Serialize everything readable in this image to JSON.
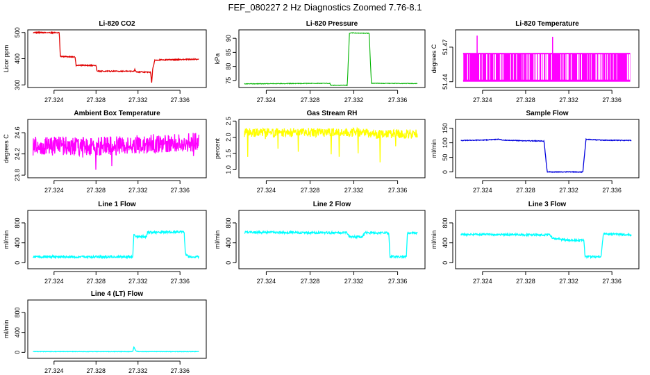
{
  "figure": {
    "title": "FEF_080227  2 Hz Diagnostics Zoomed 7.76-8.1"
  },
  "chart_data": [
    {
      "type": "line",
      "title": "Li-820 CO2",
      "ylabel": "Licor ppm",
      "color": "#e00000",
      "xlim": [
        27.3215,
        27.3385
      ],
      "ylim": [
        290,
        510
      ],
      "xticks": [
        27.324,
        27.328,
        27.332,
        27.336
      ],
      "yticks": [
        300,
        400,
        500
      ],
      "ytick_labels": [
        "300",
        "400",
        "500"
      ],
      "series": [
        {
          "x": [
            27.322,
            27.3245,
            27.3246,
            27.326,
            27.3261,
            27.328,
            27.3281,
            27.3316,
            27.3317,
            27.3318,
            27.3332,
            27.3333,
            27.3334,
            27.3336,
            27.3378
          ],
          "y": [
            500,
            499,
            408,
            407,
            375,
            374,
            352,
            352,
            360,
            350,
            348,
            308,
            360,
            395,
            398
          ]
        }
      ]
    },
    {
      "type": "line",
      "title": "Li-820 Pressure",
      "ylabel": "kPa",
      "color": "#00b400",
      "xlim": [
        27.3215,
        27.3385
      ],
      "ylim": [
        72.5,
        93
      ],
      "xticks": [
        27.324,
        27.328,
        27.332,
        27.336
      ],
      "yticks": [
        75,
        80,
        85,
        90
      ],
      "ytick_labels": [
        "75",
        "80",
        "85",
        "90"
      ],
      "series": [
        {
          "x": [
            27.322,
            27.3298,
            27.3299,
            27.3314,
            27.3316,
            27.3318,
            27.3334,
            27.3336,
            27.3378
          ],
          "y": [
            73.8,
            74.0,
            73.3,
            73.3,
            91.8,
            91.9,
            91.8,
            74.0,
            73.9
          ]
        }
      ]
    },
    {
      "type": "area",
      "title": "Li-820 Temperature",
      "ylabel": "degrees C",
      "color": "#ff00ff",
      "xlim": [
        27.3215,
        27.3385
      ],
      "ylim": [
        51.435,
        51.485
      ],
      "xticks": [
        27.324,
        27.328,
        27.332,
        27.336
      ],
      "yticks": [
        51.44,
        51.47
      ],
      "ytick_labels": [
        "51.44",
        "51.47"
      ],
      "levels": [
        51.44,
        51.465
      ],
      "spikes": [
        {
          "x": 27.3235,
          "y": 51.48
        },
        {
          "x": 27.3305,
          "y": 51.479
        }
      ]
    },
    {
      "type": "line",
      "title": "Ambient Box Temperature",
      "ylabel": "degrees C",
      "color": "#ff00ff",
      "xlim": [
        27.3215,
        27.3385
      ],
      "ylim": [
        23.75,
        24.85
      ],
      "xticks": [
        27.324,
        27.328,
        27.332,
        27.336
      ],
      "yticks": [
        23.8,
        24.2,
        24.6
      ],
      "ytick_labels": [
        "23.8",
        "24.2",
        "24.6"
      ],
      "series": [
        {
          "x": [
            27.322,
            27.326,
            27.33,
            27.332,
            27.334,
            27.336,
            27.3378
          ],
          "y": [
            24.35,
            24.35,
            24.35,
            24.38,
            24.4,
            24.42,
            24.42
          ]
        }
      ]
    },
    {
      "type": "line",
      "title": "Gas Stream RH",
      "ylabel": "percent",
      "color": "#ffff00",
      "xlim": [
        27.3215,
        27.3385
      ],
      "ylim": [
        0.75,
        2.55
      ],
      "xticks": [
        27.324,
        27.328,
        27.332,
        27.336
      ],
      "yticks": [
        1.0,
        1.5,
        2.0,
        2.5
      ],
      "ytick_labels": [
        "1.0",
        "1.5",
        "2.0",
        "2.5"
      ],
      "series": [
        {
          "x": [
            27.322,
            27.328,
            27.332,
            27.334,
            27.3378
          ],
          "y": [
            2.15,
            2.15,
            2.15,
            2.1,
            2.1
          ]
        }
      ]
    },
    {
      "type": "line",
      "title": "Sample Flow",
      "ylabel": "ml/min",
      "color": "#0000dd",
      "xlim": [
        27.3215,
        27.3385
      ],
      "ylim": [
        -20,
        180
      ],
      "xticks": [
        27.324,
        27.328,
        27.332,
        27.336
      ],
      "yticks": [
        0,
        50,
        100,
        150
      ],
      "ytick_labels": [
        "0",
        "50",
        "100",
        "150"
      ],
      "series": [
        {
          "x": [
            27.322,
            27.324,
            27.3255,
            27.326,
            27.3278,
            27.3297,
            27.33,
            27.3333,
            27.3336,
            27.335,
            27.3378
          ],
          "y": [
            108,
            109,
            112,
            109,
            107,
            106,
            0,
            0,
            112,
            109,
            108
          ]
        }
      ]
    },
    {
      "type": "line",
      "title": "Line 1 Flow",
      "ylabel": "ml/min",
      "color": "#00ffff",
      "xlim": [
        27.3215,
        27.3385
      ],
      "ylim": [
        -120,
        1050
      ],
      "xticks": [
        27.324,
        27.328,
        27.332,
        27.336
      ],
      "yticks": [
        0,
        400,
        800
      ],
      "ytick_labels": [
        "0",
        "400",
        "800"
      ],
      "series": [
        {
          "x": [
            27.322,
            27.3315,
            27.3316,
            27.3318,
            27.3328,
            27.3329,
            27.3364,
            27.3365,
            27.3368,
            27.3378
          ],
          "y": [
            120,
            120,
            560,
            520,
            530,
            610,
            620,
            190,
            120,
            120
          ]
        }
      ]
    },
    {
      "type": "line",
      "title": "Line 2 Flow",
      "ylabel": "ml/min",
      "color": "#00ffff",
      "xlim": [
        27.3215,
        27.3385
      ],
      "ylim": [
        -120,
        1050
      ],
      "xticks": [
        27.324,
        27.328,
        27.332,
        27.336
      ],
      "yticks": [
        0,
        400,
        800
      ],
      "ytick_labels": [
        "0",
        "400",
        "800"
      ],
      "series": [
        {
          "x": [
            27.322,
            27.3314,
            27.3316,
            27.3328,
            27.333,
            27.3352,
            27.3353,
            27.3368,
            27.3369,
            27.3378
          ],
          "y": [
            610,
            600,
            520,
            520,
            600,
            600,
            120,
            120,
            600,
            600
          ]
        }
      ]
    },
    {
      "type": "line",
      "title": "Line 3 Flow",
      "ylabel": "ml/min",
      "color": "#00ffff",
      "xlim": [
        27.3215,
        27.3385
      ],
      "ylim": [
        -120,
        1050
      ],
      "xticks": [
        27.324,
        27.328,
        27.332,
        27.336
      ],
      "yticks": [
        0,
        400,
        800
      ],
      "ytick_labels": [
        "0",
        "400",
        "800"
      ],
      "series": [
        {
          "x": [
            27.322,
            27.3302,
            27.3306,
            27.3312,
            27.332,
            27.3334,
            27.3335,
            27.335,
            27.3352,
            27.3378
          ],
          "y": [
            570,
            560,
            480,
            470,
            450,
            450,
            120,
            120,
            580,
            560
          ]
        }
      ]
    },
    {
      "type": "line",
      "title": "Line 4 (LT) Flow",
      "ylabel": "ml/min",
      "color": "#00ffff",
      "xlim": [
        27.3215,
        27.3385
      ],
      "ylim": [
        -120,
        1050
      ],
      "xticks": [
        27.324,
        27.328,
        27.332,
        27.336
      ],
      "yticks": [
        0,
        400,
        800
      ],
      "ytick_labels": [
        "0",
        "400",
        "800"
      ],
      "series": [
        {
          "x": [
            27.322,
            27.3315,
            27.3316,
            27.3318,
            27.332,
            27.3378
          ],
          "y": [
            15,
            15,
            110,
            30,
            15,
            15
          ]
        }
      ]
    }
  ]
}
